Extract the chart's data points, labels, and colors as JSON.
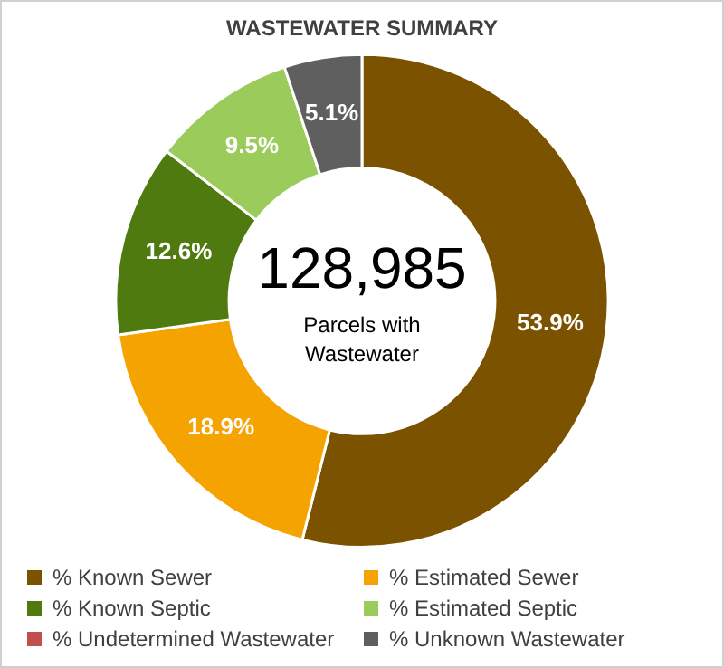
{
  "chart_data": {
    "type": "donut",
    "title": "WASTEWATER SUMMARY",
    "categories": [
      "% Known Sewer",
      "% Estimated Sewer",
      "% Known Septic",
      "% Estimated Septic",
      "% Undetermined Wastewater",
      "% Unknown Wastewater"
    ],
    "values": [
      53.9,
      18.9,
      12.6,
      9.5,
      0,
      5.1
    ],
    "value_labels": [
      "53.9%",
      "18.9%",
      "12.6%",
      "9.5%",
      null,
      "5.1%"
    ],
    "colors": [
      "#7b5200",
      "#f5a300",
      "#4e7a0f",
      "#9bcb5a",
      "#c0504d",
      "#5f5f5f"
    ],
    "annotations": [
      "128,985",
      "Parcels with Wastewater"
    ],
    "legend": "bottom"
  }
}
